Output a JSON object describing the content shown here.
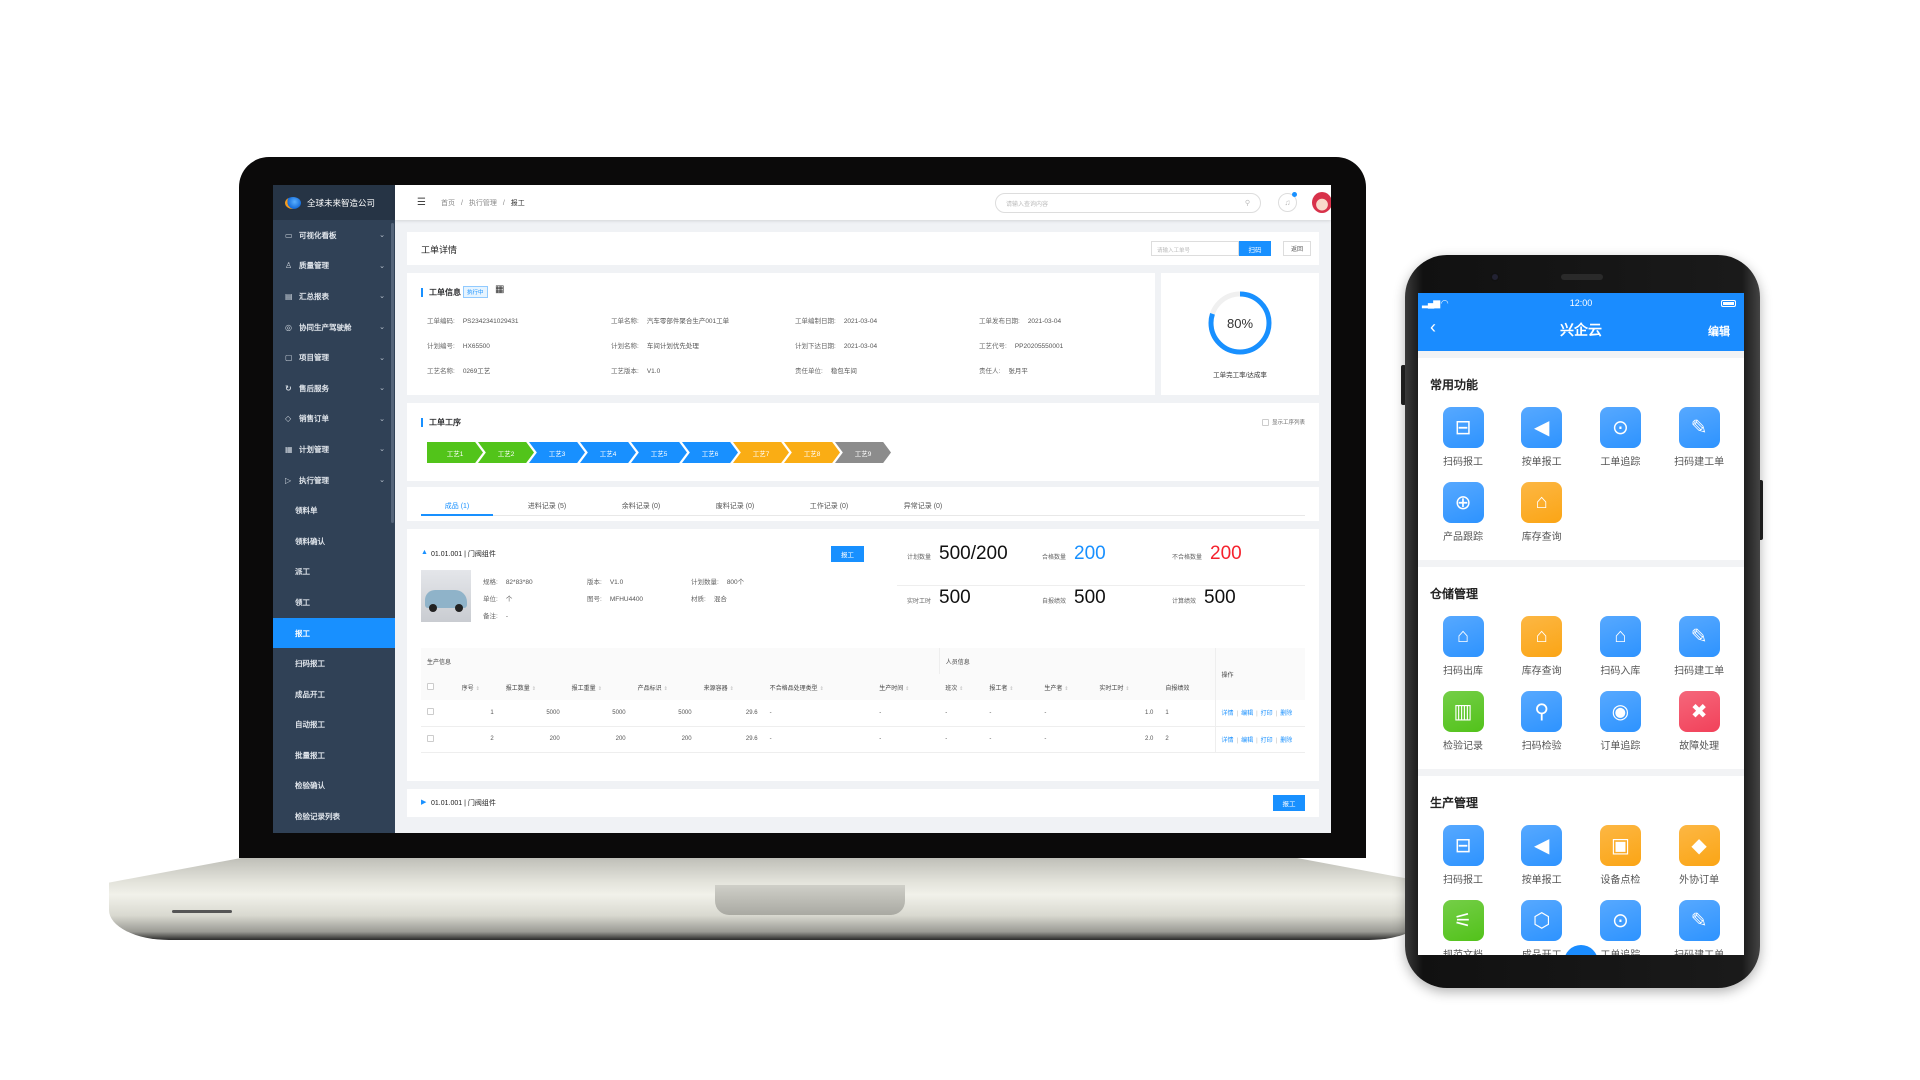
{
  "laptop": {
    "company": "全球未来智造公司",
    "sidebar": [
      {
        "label": "可视化看板",
        "icon": "dashboard-icon",
        "glyph": "▭",
        "chev": true
      },
      {
        "label": "质量管理",
        "icon": "quality-icon",
        "glyph": "♙",
        "chev": true
      },
      {
        "label": "汇总报表",
        "icon": "report-icon",
        "glyph": "▤",
        "chev": true
      },
      {
        "label": "协同生产驾驶舱",
        "icon": "cockpit-icon",
        "glyph": "◎",
        "chev": true
      },
      {
        "label": "项目管理",
        "icon": "folder-icon",
        "glyph": "▢",
        "chev": true
      },
      {
        "label": "售后服务",
        "icon": "service-icon",
        "glyph": "↻",
        "chev": true
      },
      {
        "label": "销售订单",
        "icon": "tag-icon",
        "glyph": "◇",
        "chev": true
      },
      {
        "label": "计划管理",
        "icon": "calendar-icon",
        "glyph": "▦",
        "chev": true
      },
      {
        "label": "执行管理",
        "icon": "play-icon",
        "glyph": "▷",
        "chev": true
      },
      {
        "label": "领料单",
        "sub": true
      },
      {
        "label": "领料确认",
        "sub": true
      },
      {
        "label": "派工",
        "sub": true
      },
      {
        "label": "领工",
        "sub": true
      },
      {
        "label": "报工",
        "sub": true,
        "active": true
      },
      {
        "label": "扫码报工",
        "sub": true
      },
      {
        "label": "成品开工",
        "sub": true
      },
      {
        "label": "自动报工",
        "sub": true
      },
      {
        "label": "批量报工",
        "sub": true
      },
      {
        "label": "检验确认",
        "sub": true
      },
      {
        "label": "检验记录列表",
        "sub": true
      }
    ],
    "header": {
      "breadcrumb": [
        "首页",
        "执行管理",
        "报工"
      ],
      "search_placeholder": "请输入查询内容"
    },
    "title_card": {
      "title": "工单详情",
      "input_placeholder": "请输入工单号",
      "scan_label": "扫码",
      "back_label": "返回"
    },
    "info": {
      "title": "工单信息",
      "status": "执行中",
      "fields": [
        {
          "label": "工单编码:",
          "value": "PS2342341029431"
        },
        {
          "label": "工单名称:",
          "value": "汽车零部件聚合生产001工单"
        },
        {
          "label": "工单编制日期:",
          "value": "2021-03-04"
        },
        {
          "label": "工单发布日期:",
          "value": "2021-03-04"
        },
        {
          "label": "计划编号:",
          "value": "HX65500"
        },
        {
          "label": "计划名称:",
          "value": "车间计划优先处理"
        },
        {
          "label": "计划下达日期:",
          "value": "2021-03-04"
        },
        {
          "label": "工艺代号:",
          "value": "PP20205550001"
        },
        {
          "label": "工艺名称:",
          "value": "0269工艺"
        },
        {
          "label": "工艺版本:",
          "value": "V1.0"
        },
        {
          "label": "责任单位:",
          "value": "稳包车间"
        },
        {
          "label": "责任人:",
          "value": "张月平"
        }
      ],
      "progress_percent": 80,
      "progress_text": "80%",
      "progress_label": "工单完工率/达成率"
    },
    "process": {
      "title": "工单工序",
      "show_list_label": "显示工序列表",
      "steps": [
        {
          "label": "工艺1",
          "color": "#52c41a"
        },
        {
          "label": "工艺2",
          "color": "#52c41a"
        },
        {
          "label": "工艺3",
          "color": "#1890ff"
        },
        {
          "label": "工艺4",
          "color": "#1890ff"
        },
        {
          "label": "工艺5",
          "color": "#1890ff"
        },
        {
          "label": "工艺6",
          "color": "#1890ff"
        },
        {
          "label": "工艺7",
          "color": "#faad14"
        },
        {
          "label": "工艺8",
          "color": "#faad14"
        },
        {
          "label": "工艺9",
          "color": "#8c8c8c"
        }
      ]
    },
    "tabs": [
      "成品 (1)",
      "进料记录 (5)",
      "余料记录 (0)",
      "废料记录 (0)",
      "工作记录 (0)",
      "异常记录 (0)"
    ],
    "product": {
      "title": "01.01.001 | 门阀组件",
      "report_label": "报工",
      "fields": [
        {
          "label": "规格:",
          "value": "82*83*80"
        },
        {
          "label": "版本:",
          "value": "V1.0"
        },
        {
          "label": "计划数量:",
          "value": "800个"
        },
        {
          "label": "单位:",
          "value": "个"
        },
        {
          "label": "图号:",
          "value": "MFHU4400"
        },
        {
          "label": "材质:",
          "value": "混合"
        },
        {
          "label": "备注:",
          "value": "-"
        }
      ],
      "stats": [
        {
          "label": "计划数量",
          "value": "500/200",
          "color": "#111111"
        },
        {
          "label": "合格数量",
          "value": "200",
          "color": "#1890ff"
        },
        {
          "label": "不合格数量",
          "value": "200",
          "color": "#f5222d"
        },
        {
          "label": "实时工时",
          "value": "500",
          "color": "#111111"
        },
        {
          "label": "自报绩效",
          "value": "500",
          "color": "#111111"
        },
        {
          "label": "计算绩效",
          "value": "500",
          "color": "#111111"
        }
      ],
      "table": {
        "group_production": "生产信息",
        "group_personnel": "人员信息",
        "op_header": "操作",
        "columns": [
          "序号",
          "报工数量",
          "报工重量",
          "产品标识",
          "来源容器",
          "不合格品处理类型",
          "生产时间",
          "班次",
          "报工者",
          "生产者",
          "实时工时",
          "自报绩效"
        ],
        "rows": [
          [
            "1",
            "5000",
            "5000",
            "5000",
            "29.6",
            "-",
            "-",
            "-",
            "-",
            "-",
            "1.0",
            "1"
          ],
          [
            "2",
            "200",
            "200",
            "200",
            "29.6",
            "-",
            "-",
            "-",
            "-",
            "-",
            "2.0",
            "2"
          ]
        ],
        "ops": [
          "详情",
          "编辑",
          "打印",
          "删除"
        ]
      }
    },
    "product2": {
      "title": "01.01.001 | 门阀组件",
      "report_label": "报工"
    }
  },
  "phone": {
    "time": "12:00",
    "title": "兴企云",
    "edit_label": "编辑",
    "sections": [
      {
        "title": "常用功能",
        "items": [
          {
            "label": "扫码报工",
            "icon": "scan-icon",
            "glyph": "⊟",
            "color": "blue"
          },
          {
            "label": "按单报工",
            "icon": "speaker-icon",
            "glyph": "◀",
            "color": "blue"
          },
          {
            "label": "工单追踪",
            "icon": "location-icon",
            "glyph": "⊙",
            "color": "blue"
          },
          {
            "label": "扫码建工单",
            "icon": "document-icon",
            "glyph": "✎",
            "color": "blue"
          },
          {
            "label": "产品跟踪",
            "icon": "target-icon",
            "glyph": "⊕",
            "color": "blue"
          },
          {
            "label": "库存查询",
            "icon": "warehouse-icon",
            "glyph": "⌂",
            "color": "orange"
          }
        ]
      },
      {
        "title": "仓储管理",
        "items": [
          {
            "label": "扫码出库",
            "icon": "warehouse-out-icon",
            "glyph": "⌂",
            "color": "blue"
          },
          {
            "label": "库存查询",
            "icon": "warehouse-icon",
            "glyph": "⌂",
            "color": "orange"
          },
          {
            "label": "扫码入库",
            "icon": "warehouse-in-icon",
            "glyph": "⌂",
            "color": "blue"
          },
          {
            "label": "扫码建工单",
            "icon": "document-icon",
            "glyph": "✎",
            "color": "blue"
          },
          {
            "label": "检验记录",
            "icon": "inspection-icon",
            "glyph": "▥",
            "color": "green"
          },
          {
            "label": "扫码检验",
            "icon": "magnifier-icon",
            "glyph": "⚲",
            "color": "blue"
          },
          {
            "label": "订单追踪",
            "icon": "radar-icon",
            "glyph": "◉",
            "color": "blue"
          },
          {
            "label": "故障处理",
            "icon": "tools-icon",
            "glyph": "✖",
            "color": "red"
          }
        ]
      },
      {
        "title": "生产管理",
        "items": [
          {
            "label": "扫码报工",
            "icon": "scan-icon",
            "glyph": "⊟",
            "color": "blue"
          },
          {
            "label": "按单报工",
            "icon": "speaker-icon",
            "glyph": "◀",
            "color": "blue"
          },
          {
            "label": "设备点检",
            "icon": "toolbox-icon",
            "glyph": "▣",
            "color": "orange"
          },
          {
            "label": "外协订单",
            "icon": "handshake-icon",
            "glyph": "◆",
            "color": "orange"
          },
          {
            "label": "规范文档",
            "icon": "compass-icon",
            "glyph": "⚟",
            "color": "green"
          },
          {
            "label": "成品开工",
            "icon": "bolt-nut-icon",
            "glyph": "⬡",
            "color": "blue"
          },
          {
            "label": "工单追踪",
            "icon": "location-icon",
            "glyph": "⊙",
            "color": "blue"
          },
          {
            "label": "扫码建工单",
            "icon": "document-icon",
            "glyph": "✎",
            "color": "blue"
          }
        ]
      }
    ],
    "colors": {
      "blue": "#2d93ff",
      "orange": "#fba515",
      "green": "#52c21a",
      "red": "#f2415a",
      "bar": "#1a8cff"
    }
  }
}
